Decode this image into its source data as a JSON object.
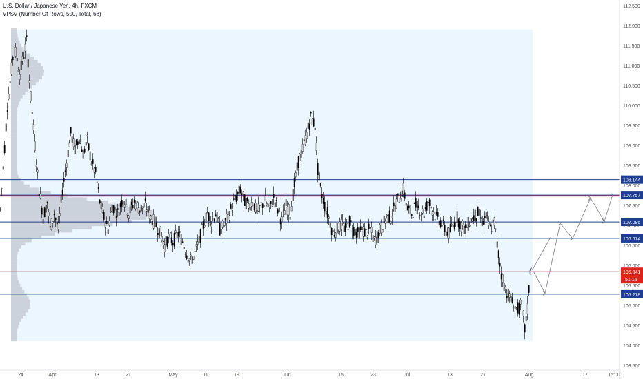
{
  "header": {
    "title": "U.S. Dollar / Japanese Yen, 4h, FXCM",
    "indicator": "VPSV (Number Of Rows, 500, Total, 68)"
  },
  "colors": {
    "price_line_blue": "#1e3f8f",
    "resistance_red": "#d0021b",
    "current_price_red": "#e0221c",
    "volume_profile": "#b2b5be",
    "profile_area": "#e3f2fd",
    "candle": "#000000",
    "projection_arrow": "#787b86"
  },
  "chart_data": {
    "type": "candlestick",
    "title": "U.S. Dollar / Japanese Yen, 4h, FXCM",
    "ylim": [
      103.5,
      112.6
    ],
    "y_ticks": [
      "112.500",
      "112.000",
      "111.500",
      "111.000",
      "110.500",
      "110.000",
      "109.500",
      "109.000",
      "108.500",
      "108.000",
      "107.500",
      "107.000",
      "106.500",
      "106.000",
      "105.500",
      "105.000",
      "104.500",
      "104.000",
      "103.500"
    ],
    "x_ticks": [
      "24",
      "Apr",
      "13",
      "21",
      "May",
      "11",
      "19",
      "Jun",
      "15",
      "23",
      "Jul",
      "13",
      "21",
      "Aug",
      "17",
      "15:00"
    ],
    "levels": [
      {
        "value": 108.144,
        "label": "108.144",
        "color": "#1e3f8f"
      },
      {
        "value": 107.757,
        "label": "107.757",
        "color": "#1e3f8f"
      },
      {
        "value": 107.735,
        "label": "",
        "color": "#d0021b"
      },
      {
        "value": 107.085,
        "label": "107.085",
        "color": "#1e3f8f"
      },
      {
        "value": 106.674,
        "label": "106.674",
        "color": "#1e3f8f"
      },
      {
        "value": 105.841,
        "label": "105.841",
        "color": "#e0221c"
      },
      {
        "value": 105.278,
        "label": "105.278",
        "color": "#1e3f8f"
      }
    ],
    "current_price": {
      "value": 105.841,
      "label": "105.841",
      "countdown": "51:15"
    },
    "price_path": [
      [
        0,
        107.4
      ],
      [
        10,
        110.0
      ],
      [
        20,
        111.5
      ],
      [
        28,
        110.8
      ],
      [
        38,
        111.6
      ],
      [
        44,
        110.2
      ],
      [
        50,
        109.0
      ],
      [
        56,
        107.9
      ],
      [
        62,
        107.2
      ],
      [
        68,
        107.6
      ],
      [
        72,
        106.9
      ],
      [
        78,
        107.3
      ],
      [
        84,
        106.9
      ],
      [
        90,
        107.9
      ],
      [
        96,
        108.6
      ],
      [
        102,
        109.3
      ],
      [
        108,
        108.9
      ],
      [
        114,
        109.2
      ],
      [
        120,
        108.8
      ],
      [
        126,
        109.1
      ],
      [
        132,
        108.6
      ],
      [
        138,
        108.3
      ],
      [
        144,
        107.6
      ],
      [
        150,
        107.2
      ],
      [
        156,
        106.9
      ],
      [
        162,
        107.5
      ],
      [
        170,
        107.3
      ],
      [
        178,
        107.7
      ],
      [
        186,
        107.3
      ],
      [
        194,
        107.6
      ],
      [
        202,
        107.4
      ],
      [
        210,
        107.5
      ],
      [
        218,
        107.2
      ],
      [
        226,
        107.0
      ],
      [
        232,
        106.8
      ],
      [
        238,
        106.5
      ],
      [
        244,
        106.7
      ],
      [
        250,
        106.6
      ],
      [
        258,
        106.8
      ],
      [
        264,
        106.6
      ],
      [
        270,
        106.3
      ],
      [
        276,
        106.1
      ],
      [
        282,
        106.3
      ],
      [
        288,
        106.6
      ],
      [
        294,
        107.0
      ],
      [
        300,
        107.3
      ],
      [
        306,
        107.1
      ],
      [
        312,
        107.3
      ],
      [
        318,
        106.9
      ],
      [
        324,
        107.0
      ],
      [
        330,
        107.2
      ],
      [
        336,
        107.5
      ],
      [
        342,
        107.7
      ],
      [
        348,
        107.9
      ],
      [
        354,
        107.6
      ],
      [
        360,
        107.5
      ],
      [
        366,
        107.6
      ],
      [
        372,
        107.3
      ],
      [
        378,
        107.5
      ],
      [
        384,
        107.6
      ],
      [
        390,
        107.4
      ],
      [
        396,
        107.7
      ],
      [
        402,
        107.4
      ],
      [
        408,
        107.1
      ],
      [
        414,
        107.5
      ],
      [
        420,
        107.3
      ],
      [
        426,
        108.0
      ],
      [
        432,
        108.6
      ],
      [
        438,
        108.9
      ],
      [
        444,
        109.3
      ],
      [
        450,
        109.7
      ],
      [
        456,
        109.5
      ],
      [
        460,
        108.4
      ],
      [
        464,
        107.9
      ],
      [
        470,
        107.5
      ],
      [
        476,
        107.2
      ],
      [
        482,
        106.8
      ],
      [
        488,
        106.9
      ],
      [
        494,
        107.0
      ],
      [
        500,
        106.9
      ],
      [
        506,
        107.1
      ],
      [
        512,
        106.9
      ],
      [
        518,
        106.8
      ],
      [
        524,
        106.9
      ],
      [
        530,
        106.8
      ],
      [
        536,
        106.9
      ],
      [
        542,
        106.6
      ],
      [
        548,
        106.8
      ],
      [
        554,
        107.0
      ],
      [
        560,
        107.2
      ],
      [
        566,
        107.2
      ],
      [
        572,
        107.5
      ],
      [
        578,
        107.7
      ],
      [
        584,
        107.9
      ],
      [
        590,
        107.4
      ],
      [
        596,
        107.3
      ],
      [
        602,
        107.5
      ],
      [
        608,
        107.4
      ],
      [
        614,
        107.3
      ],
      [
        620,
        107.6
      ],
      [
        626,
        107.4
      ],
      [
        632,
        107.2
      ],
      [
        638,
        107.1
      ],
      [
        644,
        106.9
      ],
      [
        650,
        106.8
      ],
      [
        656,
        107.0
      ],
      [
        662,
        107.2
      ],
      [
        668,
        107.0
      ],
      [
        674,
        106.9
      ],
      [
        680,
        107.1
      ],
      [
        686,
        107.2
      ],
      [
        692,
        107.3
      ],
      [
        698,
        107.1
      ],
      [
        704,
        107.2
      ],
      [
        710,
        106.9
      ],
      [
        716,
        107.1
      ],
      [
        720,
        106.5
      ],
      [
        726,
        105.8
      ],
      [
        732,
        105.4
      ],
      [
        738,
        105.2
      ],
      [
        744,
        105.0
      ],
      [
        750,
        104.9
      ],
      [
        756,
        105.0
      ],
      [
        760,
        104.4
      ],
      [
        764,
        104.9
      ],
      [
        768,
        105.9
      ],
      [
        770,
        106.1
      ]
    ]
  }
}
